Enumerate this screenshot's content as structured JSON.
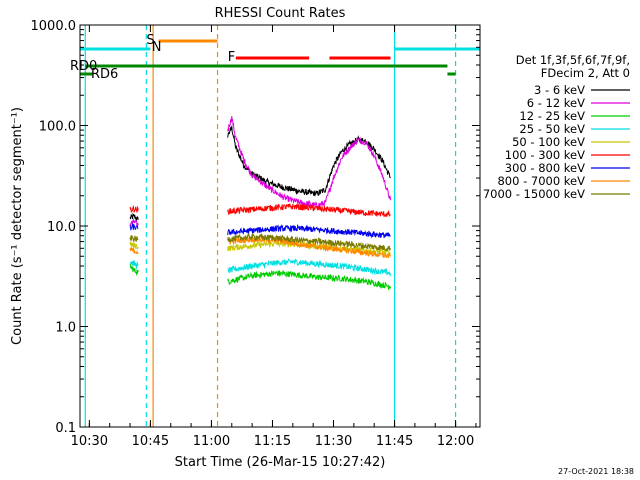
{
  "chart_data": {
    "type": "line",
    "title": "RHESSI Count Rates",
    "xlabel": "Start Time (26-Mar-15 10:27:42)",
    "ylabel": "Count Rate (s⁻¹ detector segment⁻¹)",
    "yscale": "log",
    "ylim": [
      0.1,
      1000
    ],
    "xlim": [
      "10:27:42",
      "12:06:00"
    ],
    "x_ticks": [
      "10:30",
      "10:45",
      "11:00",
      "11:15",
      "11:30",
      "11:45",
      "12:00"
    ],
    "y_ticks": [
      "0.1",
      "1.0",
      "10.0",
      "100.0",
      "1000.0"
    ],
    "grid": false,
    "legend_position": "right",
    "legend_header": [
      "Det 1f,3f,5f,6f,7f,9f,",
      "FDecim 2, Att 0"
    ],
    "series": [
      {
        "name": "3 - 6 keV",
        "color": "#000000",
        "segments": [
          {
            "t": [
              "10:40",
              "10:41",
              "10:42"
            ],
            "y": [
              12,
              12.5,
              11.5
            ]
          },
          {
            "t": [
              "11:04",
              "11:05",
              "11:06",
              "11:08",
              "11:10",
              "11:14",
              "11:18",
              "11:22",
              "11:26",
              "11:28",
              "11:30",
              "11:32",
              "11:34",
              "11:36",
              "11:38",
              "11:40",
              "11:42",
              "11:44"
            ],
            "y": [
              80,
              95,
              60,
              40,
              33,
              27,
              24,
              22,
              21,
              23,
              40,
              55,
              65,
              72,
              70,
              58,
              45,
              30
            ]
          }
        ]
      },
      {
        "name": "6 - 12 keV",
        "color": "#dd00dd",
        "segments": [
          {
            "t": [
              "10:40",
              "10:41",
              "10:42"
            ],
            "y": [
              10.5,
              11,
              10.2
            ]
          },
          {
            "t": [
              "11:04",
              "11:05",
              "11:06",
              "11:08",
              "11:10",
              "11:14",
              "11:18",
              "11:22",
              "11:26",
              "11:28",
              "11:30",
              "11:32",
              "11:34",
              "11:36",
              "11:38",
              "11:40",
              "11:42",
              "11:44"
            ],
            "y": [
              90,
              120,
              75,
              45,
              32,
              24,
              19,
              17,
              16,
              17,
              30,
              48,
              60,
              72,
              68,
              50,
              32,
              18
            ]
          }
        ]
      },
      {
        "name": "12 - 25 keV",
        "color": "#00cc00",
        "segments": [
          {
            "t": [
              "10:40",
              "10:41",
              "10:42"
            ],
            "y": [
              4.0,
              3.6,
              3.5
            ]
          },
          {
            "t": [
              "11:04",
              "11:10",
              "11:16",
              "11:20",
              "11:26",
              "11:32",
              "11:38",
              "11:44"
            ],
            "y": [
              2.8,
              3.2,
              3.4,
              3.3,
              3.1,
              3.0,
              2.8,
              2.5
            ]
          }
        ]
      },
      {
        "name": "25 - 50 keV",
        "color": "#00e0e0",
        "segments": [
          {
            "t": [
              "10:40",
              "10:41",
              "10:42"
            ],
            "y": [
              4.4,
              4.2,
              4.0
            ]
          },
          {
            "t": [
              "11:04",
              "11:10",
              "11:16",
              "11:20",
              "11:26",
              "11:32",
              "11:38",
              "11:44"
            ],
            "y": [
              3.6,
              4.0,
              4.3,
              4.4,
              4.2,
              4.0,
              3.7,
              3.4
            ]
          }
        ]
      },
      {
        "name": "50 - 100 keV",
        "color": "#c8c800",
        "segments": [
          {
            "t": [
              "10:40",
              "10:41",
              "10:42"
            ],
            "y": [
              6.6,
              6.4,
              6.2
            ]
          },
          {
            "t": [
              "11:04",
              "11:10",
              "11:16",
              "11:20",
              "11:26",
              "11:32",
              "11:38",
              "11:44"
            ],
            "y": [
              6.0,
              6.4,
              6.7,
              6.6,
              6.3,
              6.0,
              5.7,
              5.4
            ]
          }
        ]
      },
      {
        "name": "100 - 300 keV",
        "color": "#ff0000",
        "segments": [
          {
            "t": [
              "10:40",
              "10:41",
              "10:42"
            ],
            "y": [
              14.5,
              14.8,
              14.3
            ]
          },
          {
            "t": [
              "11:04",
              "11:10",
              "11:16",
              "11:20",
              "11:26",
              "11:32",
              "11:38",
              "11:44"
            ],
            "y": [
              14.0,
              14.6,
              15.3,
              15.6,
              15.0,
              14.2,
              13.5,
              13.0
            ]
          }
        ]
      },
      {
        "name": "300 - 800 keV",
        "color": "#0000ee",
        "segments": [
          {
            "t": [
              "10:40",
              "10:41",
              "10:42"
            ],
            "y": [
              9.5,
              9.8,
              9.4
            ]
          },
          {
            "t": [
              "11:04",
              "11:10",
              "11:16",
              "11:20",
              "11:26",
              "11:32",
              "11:38",
              "11:44"
            ],
            "y": [
              8.6,
              9.0,
              9.4,
              9.5,
              9.2,
              8.8,
              8.4,
              8.0
            ]
          }
        ]
      },
      {
        "name": "800 - 7000 keV",
        "color": "#ff8800",
        "segments": [
          {
            "t": [
              "10:40",
              "10:41",
              "10:42"
            ],
            "y": [
              5.8,
              5.7,
              5.5
            ]
          },
          {
            "t": [
              "11:04",
              "11:10",
              "11:16",
              "11:20",
              "11:26",
              "11:32",
              "11:38",
              "11:44"
            ],
            "y": [
              7.0,
              7.4,
              7.2,
              6.8,
              6.2,
              5.8,
              5.4,
              5.0
            ]
          }
        ]
      },
      {
        "name": "7000 - 15000 keV",
        "color": "#7a7a00",
        "segments": [
          {
            "t": [
              "10:40",
              "10:41",
              "10:42"
            ],
            "y": [
              7.6,
              7.5,
              7.3
            ]
          },
          {
            "t": [
              "11:04",
              "11:10",
              "11:16",
              "11:20",
              "11:26",
              "11:32",
              "11:38",
              "11:44"
            ],
            "y": [
              7.4,
              7.8,
              7.6,
              7.3,
              7.0,
              6.7,
              6.3,
              6.0
            ]
          }
        ]
      }
    ],
    "annotations": {
      "RD0": {
        "label": "RD0",
        "color": "#008800"
      },
      "RD6": {
        "label": "RD6",
        "color": "#008800"
      },
      "S": {
        "label": "S",
        "color": "#ff8800"
      },
      "N": {
        "label": "N",
        "color": "#00e0e0"
      },
      "F": {
        "label": "F",
        "color": "#ff0000"
      }
    },
    "footer_date": "27-Oct-2021 18:38"
  }
}
